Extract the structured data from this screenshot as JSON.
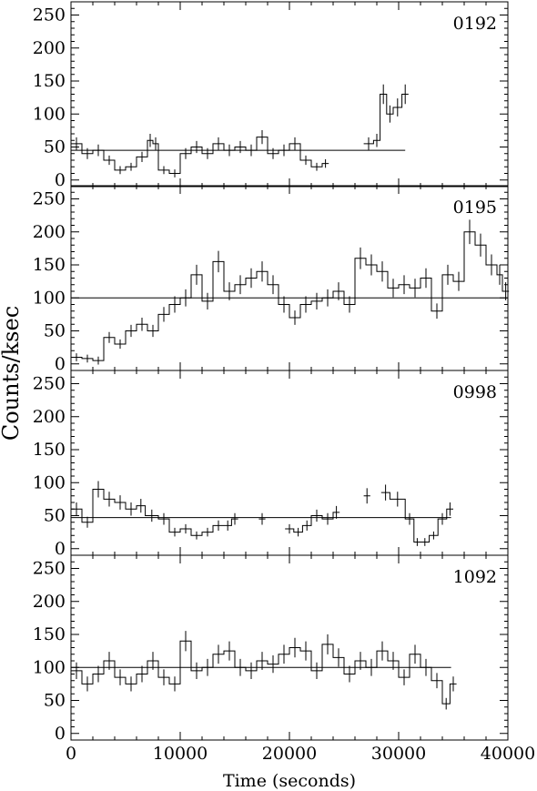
{
  "chart_data": {
    "type": "line",
    "xlabel": "Time (seconds)",
    "ylabel": "Counts/ksec",
    "xlim": [
      0,
      40000
    ],
    "x_ticks": [
      0,
      10000,
      20000,
      30000,
      40000
    ],
    "x_tick_labels": [
      "0",
      "10000",
      "20000",
      "30000",
      "40000"
    ],
    "ylim": [
      -10,
      270
    ],
    "y_ticks": [
      0,
      50,
      100,
      150,
      200,
      250
    ],
    "y_tick_labels": [
      "0",
      "50",
      "100",
      "150",
      "200",
      "250"
    ],
    "panels": [
      {
        "label": "0192",
        "mean": 45,
        "mean_x_end": 30600,
        "x": [
          0,
          1000,
          2000,
          3000,
          4000,
          5000,
          6000,
          7000,
          7500,
          8000,
          9000,
          10000,
          11000,
          12000,
          13000,
          14000,
          15000,
          16000,
          17000,
          18000,
          19000,
          20000,
          21000,
          22000,
          23000,
          26800,
          27700,
          28300,
          28900,
          29500,
          30300
        ],
        "y": [
          55,
          40,
          45,
          30,
          15,
          20,
          35,
          60,
          55,
          15,
          10,
          40,
          50,
          40,
          55,
          45,
          50,
          45,
          65,
          40,
          45,
          55,
          30,
          20,
          25,
          55,
          60,
          130,
          100,
          110,
          130
        ]
      },
      {
        "label": "0195",
        "mean": 100,
        "mean_x_end": 40000,
        "x": [
          0,
          1000,
          2000,
          3000,
          4000,
          5000,
          6000,
          7000,
          8000,
          9000,
          10000,
          11000,
          12000,
          13000,
          14000,
          15000,
          16000,
          17000,
          18000,
          19000,
          20000,
          21000,
          22000,
          23000,
          24000,
          25000,
          26000,
          27000,
          28000,
          29000,
          30000,
          31000,
          32000,
          33000,
          34000,
          35000,
          36000,
          37000,
          38000,
          39000,
          39500
        ],
        "y": [
          10,
          8,
          5,
          40,
          30,
          50,
          60,
          50,
          75,
          90,
          100,
          135,
          95,
          155,
          110,
          120,
          130,
          140,
          120,
          90,
          70,
          90,
          95,
          100,
          110,
          90,
          160,
          150,
          140,
          115,
          120,
          115,
          130,
          80,
          135,
          125,
          200,
          180,
          150,
          135,
          110
        ]
      },
      {
        "label": "0998",
        "mean": 47,
        "mean_x_end": 34800,
        "x": [
          0,
          1000,
          2000,
          3000,
          4000,
          5000,
          6000,
          6800,
          8000,
          9000,
          10000,
          11000,
          12000,
          13000,
          14000,
          14700,
          17200,
          19600,
          20400,
          21200,
          22000,
          23000,
          24000,
          26800,
          28400,
          29200,
          30600,
          31400,
          32000,
          32800,
          33600,
          34400
        ],
        "y": [
          60,
          40,
          90,
          75,
          70,
          60,
          65,
          50,
          45,
          25,
          30,
          20,
          25,
          35,
          35,
          45,
          45,
          30,
          25,
          35,
          50,
          45,
          55,
          80,
          85,
          75,
          45,
          10,
          10,
          20,
          45,
          60
        ]
      },
      {
        "label": "1092",
        "mean": 100,
        "mean_x_end": 34800,
        "x": [
          0,
          1000,
          2000,
          3000,
          4000,
          5000,
          6000,
          7000,
          8000,
          9000,
          10000,
          11000,
          12000,
          13000,
          14000,
          15000,
          16000,
          17000,
          18000,
          19000,
          20000,
          21000,
          22000,
          23000,
          24000,
          25000,
          26000,
          27000,
          28000,
          29000,
          30000,
          31000,
          32000,
          33000,
          34000,
          34700
        ],
        "y": [
          95,
          75,
          90,
          110,
          85,
          75,
          90,
          110,
          85,
          75,
          140,
          95,
          100,
          120,
          125,
          100,
          95,
          110,
          105,
          120,
          130,
          125,
          95,
          135,
          115,
          90,
          110,
          100,
          125,
          110,
          85,
          120,
          100,
          80,
          45,
          75
        ]
      }
    ]
  }
}
